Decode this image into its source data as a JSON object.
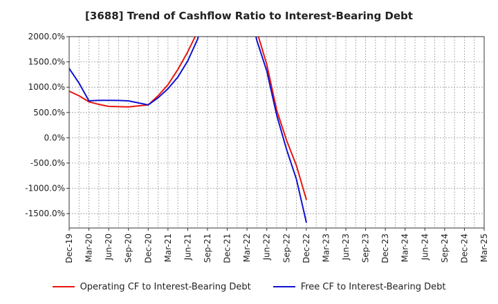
{
  "chart_data": {
    "type": "line",
    "title": "[3688]  Trend of Cashflow Ratio to Interest-Bearing Debt",
    "xlabel": "",
    "ylabel": "",
    "ylim": [
      -1800,
      2000
    ],
    "yticks": [
      2000,
      1500,
      1000,
      500,
      0,
      -500,
      -1000,
      -1500
    ],
    "ytick_labels": [
      "2000.0%",
      "1500.0%",
      "1000.0%",
      "500.0%",
      "0.0%",
      "-500.0%",
      "-1000.0%",
      "-1500.0%"
    ],
    "categories": [
      "Dec-19",
      "Mar-20",
      "Jun-20",
      "Sep-20",
      "Dec-20",
      "Mar-21",
      "Jun-21",
      "Sep-21",
      "Dec-21",
      "Mar-22",
      "Jun-22",
      "Sep-22",
      "Dec-22",
      "Mar-23",
      "Jun-23",
      "Sep-23",
      "Dec-23",
      "Mar-24",
      "Jun-24",
      "Sep-24",
      "Dec-24",
      "Mar-25"
    ],
    "grid": true,
    "legend_position": "bottom",
    "series": [
      {
        "name": "Operating CF to Interest-Bearing Debt",
        "color": "#e8140c",
        "points": [
          [
            0,
            920
          ],
          [
            0.5,
            830
          ],
          [
            1,
            710
          ],
          [
            1.5,
            660
          ],
          [
            2,
            620
          ],
          [
            2.5,
            615
          ],
          [
            3,
            610
          ],
          [
            3.5,
            630
          ],
          [
            4,
            650
          ],
          [
            4.5,
            830
          ],
          [
            5,
            1050
          ],
          [
            5.5,
            1350
          ],
          [
            6,
            1700
          ],
          [
            6.5,
            2100
          ],
          [
            6.67,
            2200
          ],
          [
            9.33,
            2200
          ],
          [
            9.5,
            2100
          ],
          [
            10,
            1450
          ],
          [
            10.5,
            550
          ],
          [
            11,
            -50
          ],
          [
            11.5,
            -550
          ],
          [
            12,
            -1220
          ]
        ]
      },
      {
        "name": "Free CF to Interest-Bearing Debt",
        "color": "#1010d2",
        "points": [
          [
            0,
            1370
          ],
          [
            0.5,
            1080
          ],
          [
            1,
            730
          ],
          [
            1.5,
            740
          ],
          [
            2,
            740
          ],
          [
            2.5,
            738
          ],
          [
            3,
            730
          ],
          [
            3.5,
            690
          ],
          [
            4,
            650
          ],
          [
            4.5,
            790
          ],
          [
            5,
            970
          ],
          [
            5.5,
            1200
          ],
          [
            6,
            1520
          ],
          [
            6.5,
            1950
          ],
          [
            6.67,
            2200
          ],
          [
            9.33,
            2200
          ],
          [
            9.5,
            1920
          ],
          [
            10,
            1320
          ],
          [
            10.5,
            450
          ],
          [
            11,
            -230
          ],
          [
            11.5,
            -820
          ],
          [
            12,
            -1670
          ]
        ]
      }
    ]
  }
}
